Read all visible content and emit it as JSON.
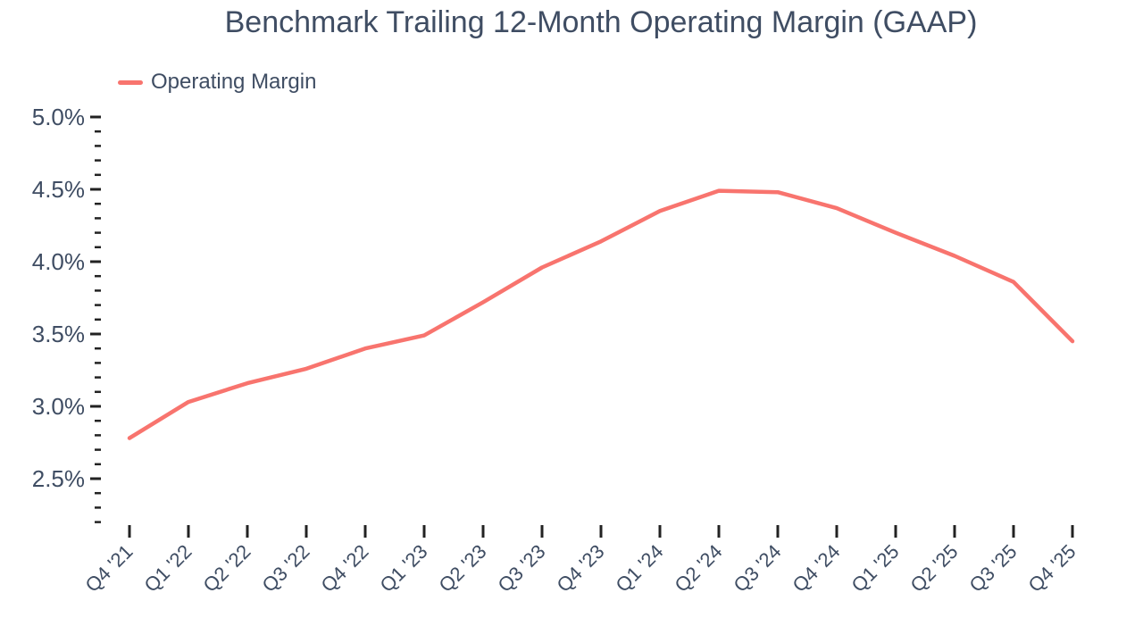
{
  "title": "Benchmark Trailing 12-Month Operating Margin (GAAP)",
  "legend": {
    "label": "Operating Margin",
    "color": "#f8746e"
  },
  "colors": {
    "line": "#f8746e",
    "text": "#3f4d63",
    "tick": "#222222",
    "background": "#ffffff"
  },
  "chart_data": {
    "type": "line",
    "title": "Benchmark Trailing 12-Month Operating Margin (GAAP)",
    "categories": [
      "Q4 '21",
      "Q1 '22",
      "Q2 '22",
      "Q3 '22",
      "Q4 '22",
      "Q1 '23",
      "Q2 '23",
      "Q3 '23",
      "Q4 '23",
      "Q1 '24",
      "Q2 '24",
      "Q3 '24",
      "Q4 '24",
      "Q1 '25",
      "Q2 '25",
      "Q3 '25",
      "Q4 '25"
    ],
    "series": [
      {
        "name": "Operating Margin",
        "color": "#f8746e",
        "values": [
          2.78,
          3.03,
          3.16,
          3.26,
          3.4,
          3.49,
          3.72,
          3.96,
          4.14,
          4.35,
          4.49,
          4.48,
          4.37,
          4.2,
          4.04,
          3.86,
          3.45
        ]
      }
    ],
    "xlabel": "",
    "ylabel": "",
    "y_axis": {
      "tick_values": [
        5.0,
        4.5,
        4.0,
        3.5,
        3.0,
        2.5
      ],
      "tick_labels": [
        "5.0%",
        "4.5%",
        "4.0%",
        "3.5%",
        "3.0%",
        "2.5%"
      ],
      "minor_tick_step": 0.1,
      "range": [
        2.2,
        5.0
      ],
      "unit": "percent"
    },
    "grid": false,
    "legend_position": "top-left",
    "x_tick_angle": -45
  }
}
